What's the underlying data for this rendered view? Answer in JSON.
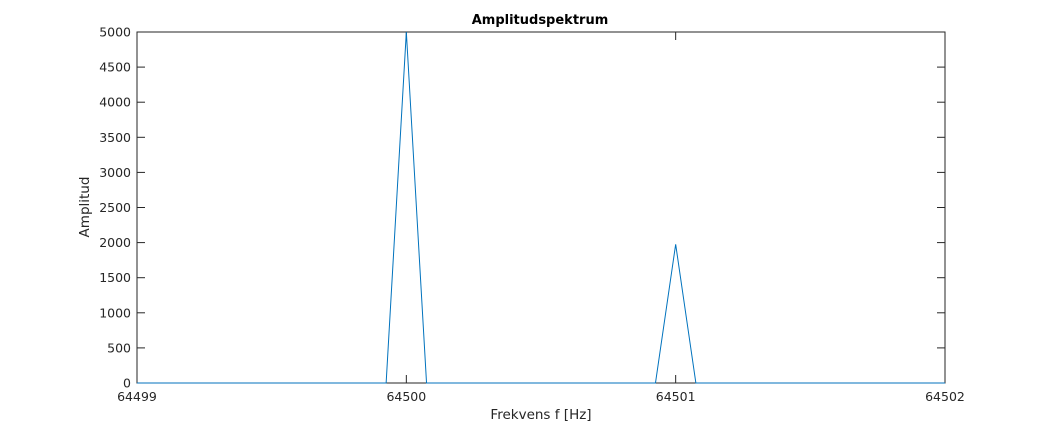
{
  "chart_data": {
    "type": "line",
    "title": "Amplitudspektrum",
    "xlabel": "Frekvens f [Hz]",
    "ylabel": "Amplitud",
    "xlim": [
      64499,
      64502
    ],
    "ylim": [
      0,
      5000
    ],
    "xticks": [
      64499,
      64500,
      64501,
      64502
    ],
    "yticks": [
      0,
      500,
      1000,
      1500,
      2000,
      2500,
      3000,
      3500,
      4000,
      4500,
      5000
    ],
    "grid": false,
    "box": true,
    "series": [
      {
        "color": "#0072bd",
        "x": [
          64499,
          64499.925,
          64500,
          64500.075,
          64500.925,
          64501,
          64501.075,
          64502
        ],
        "y": [
          0,
          0,
          5000,
          0,
          0,
          1975,
          0,
          0
        ]
      }
    ]
  }
}
